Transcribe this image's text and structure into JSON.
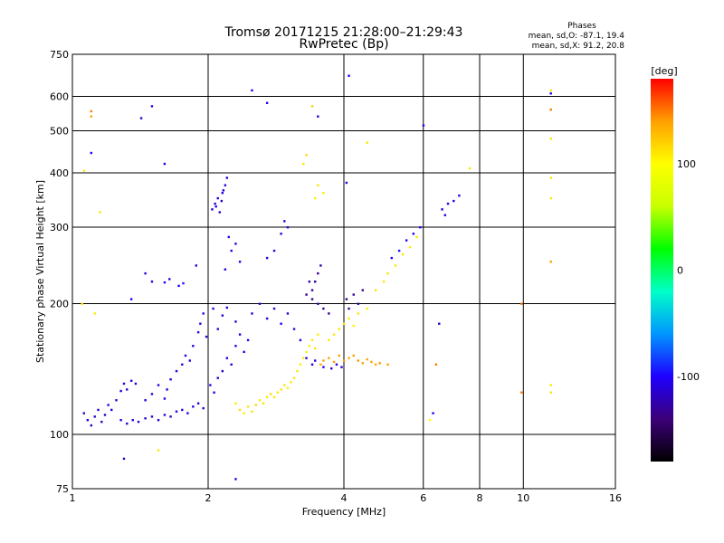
{
  "chart_data": {
    "type": "scatter",
    "title": "Tromsø 20171215 21:28:00–21:29:43",
    "subtitle": "RwPretec (Bp)",
    "xlabel": "Frequency [MHz]",
    "ylabel": "Stationary phase Virtual Height [km]",
    "x_scale": "log",
    "y_scale": "log",
    "xlim": [
      1,
      16
    ],
    "ylim": [
      75,
      750
    ],
    "x_ticks": [
      1,
      2,
      4,
      6,
      8,
      10,
      16
    ],
    "x_tick_labels": [
      "1",
      "2",
      "4",
      "6",
      "8",
      "10",
      "16"
    ],
    "y_ticks": [
      75,
      100,
      200,
      300,
      400,
      500,
      600,
      750
    ],
    "y_tick_labels": [
      "75",
      "100",
      "200",
      "300",
      "400",
      "500",
      "600",
      "750"
    ],
    "grid": true,
    "legend": {
      "heading": "Phases",
      "lines": [
        "mean, sd,O: -87.1, 19.4",
        "mean, sd,X:  91.2, 20.8"
      ],
      "position": "top-right"
    },
    "colorbar": {
      "label": "[deg]",
      "range": [
        -180,
        180
      ],
      "ticks": [
        100,
        0,
        -100
      ],
      "tick_labels": [
        "100",
        "0",
        "-100"
      ],
      "colors": [
        "#000000",
        "#3c0078",
        "#1e00ff",
        "#0096ff",
        "#00ffc8",
        "#00ff00",
        "#c8ff00",
        "#ffff00",
        "#ffa000",
        "#ff0000"
      ]
    },
    "series": [
      {
        "values": [
          [
            1.06,
            112,
            -115
          ],
          [
            1.08,
            108,
            -110
          ],
          [
            1.1,
            105,
            -118
          ],
          [
            1.12,
            110,
            -112
          ],
          [
            1.14,
            114,
            -108
          ],
          [
            1.16,
            107,
            -115
          ],
          [
            1.18,
            111,
            -110
          ],
          [
            1.2,
            117,
            -105
          ],
          [
            1.22,
            114,
            -112
          ],
          [
            1.25,
            120,
            -108
          ],
          [
            1.28,
            126,
            -110
          ],
          [
            1.3,
            131,
            -105
          ],
          [
            1.32,
            127,
            -112
          ],
          [
            1.35,
            133,
            -108
          ],
          [
            1.38,
            131,
            -110
          ],
          [
            1.28,
            108,
            -112
          ],
          [
            1.32,
            106,
            -115
          ],
          [
            1.36,
            108,
            -110
          ],
          [
            1.4,
            107,
            -112
          ],
          [
            1.45,
            109,
            -115
          ],
          [
            1.5,
            110,
            -110
          ],
          [
            1.55,
            108,
            -112
          ],
          [
            1.6,
            111,
            -108
          ],
          [
            1.65,
            110,
            -115
          ],
          [
            1.7,
            113,
            -110
          ],
          [
            1.75,
            114,
            -112
          ],
          [
            1.8,
            112,
            -110
          ],
          [
            1.85,
            116,
            -108
          ],
          [
            1.9,
            118,
            -112
          ],
          [
            1.95,
            115,
            -110
          ],
          [
            1.45,
            120,
            -110
          ],
          [
            1.5,
            124,
            -112
          ],
          [
            1.55,
            130,
            -110
          ],
          [
            1.6,
            121,
            -108
          ],
          [
            1.62,
            127,
            -112
          ],
          [
            1.65,
            134,
            -110
          ],
          [
            1.7,
            140,
            -105
          ],
          [
            1.75,
            145,
            -108
          ],
          [
            1.78,
            152,
            -110
          ],
          [
            1.82,
            148,
            -112
          ],
          [
            1.85,
            160,
            -108
          ],
          [
            1.9,
            172,
            -110
          ],
          [
            1.92,
            180,
            -112
          ],
          [
            1.95,
            190,
            -108
          ],
          [
            1.98,
            168,
            -110
          ],
          [
            1.72,
            220,
            -100
          ],
          [
            1.76,
            223,
            -95
          ],
          [
            1.6,
            224,
            -100
          ],
          [
            1.64,
            228,
            -110
          ],
          [
            1.88,
            245,
            -115
          ],
          [
            2.02,
            130,
            -110
          ],
          [
            2.06,
            125,
            -108
          ],
          [
            2.1,
            135,
            -112
          ],
          [
            2.15,
            140,
            -110
          ],
          [
            2.2,
            150,
            -108
          ],
          [
            2.25,
            145,
            -112
          ],
          [
            2.3,
            160,
            -105
          ],
          [
            2.35,
            170,
            -100
          ],
          [
            2.4,
            155,
            -108
          ],
          [
            2.45,
            165,
            -110
          ],
          [
            2.1,
            175,
            -112
          ],
          [
            2.15,
            188,
            -108
          ],
          [
            2.2,
            196,
            -110
          ],
          [
            2.3,
            182,
            -115
          ],
          [
            2.05,
            195,
            -110
          ],
          [
            2.04,
            330,
            -110
          ],
          [
            2.07,
            340,
            -112
          ],
          [
            2.1,
            350,
            -108
          ],
          [
            2.12,
            325,
            -110
          ],
          [
            2.15,
            360,
            -105
          ],
          [
            2.18,
            375,
            -110
          ],
          [
            2.2,
            390,
            -112
          ],
          [
            2.08,
            335,
            -100
          ],
          [
            2.14,
            345,
            -120
          ],
          [
            2.16,
            365,
            -108
          ],
          [
            2.22,
            285,
            -110
          ],
          [
            2.3,
            275,
            -112
          ],
          [
            2.25,
            265,
            -105
          ],
          [
            2.35,
            250,
            -110
          ],
          [
            2.18,
            240,
            -108
          ],
          [
            2.3,
            118,
            110
          ],
          [
            2.35,
            114,
            115
          ],
          [
            2.4,
            112,
            108
          ],
          [
            2.45,
            116,
            112
          ],
          [
            2.5,
            113,
            110
          ],
          [
            2.55,
            117,
            115
          ],
          [
            2.6,
            120,
            108
          ],
          [
            2.65,
            118,
            112
          ],
          [
            2.7,
            122,
            110
          ],
          [
            2.75,
            124,
            115
          ],
          [
            2.8,
            122,
            110
          ],
          [
            2.85,
            125,
            108
          ],
          [
            2.9,
            127,
            112
          ],
          [
            2.95,
            130,
            110
          ],
          [
            3.0,
            128,
            105
          ],
          [
            3.05,
            132,
            108
          ],
          [
            3.1,
            135,
            110
          ],
          [
            3.15,
            140,
            112
          ],
          [
            3.2,
            145,
            108
          ],
          [
            3.25,
            150,
            110
          ],
          [
            3.3,
            155,
            105
          ],
          [
            3.35,
            160,
            108
          ],
          [
            3.4,
            165,
            110
          ],
          [
            3.45,
            158,
            112
          ],
          [
            3.5,
            170,
            108
          ],
          [
            3.55,
            145,
            135
          ],
          [
            3.6,
            148,
            140
          ],
          [
            3.7,
            150,
            138
          ],
          [
            3.8,
            147,
            142
          ],
          [
            3.9,
            152,
            140
          ],
          [
            4.0,
            148,
            138
          ],
          [
            4.1,
            150,
            135
          ],
          [
            4.2,
            152,
            140
          ],
          [
            4.3,
            148,
            142
          ],
          [
            4.4,
            146,
            140
          ],
          [
            4.5,
            149,
            138
          ],
          [
            4.6,
            147,
            140
          ],
          [
            4.7,
            145,
            135
          ],
          [
            4.8,
            146,
            142
          ],
          [
            5.0,
            145,
            140
          ],
          [
            3.7,
            165,
            108
          ],
          [
            3.8,
            170,
            110
          ],
          [
            3.9,
            175,
            112
          ],
          [
            4.0,
            180,
            108
          ],
          [
            4.1,
            185,
            110
          ],
          [
            4.2,
            178,
            105
          ],
          [
            4.3,
            190,
            110
          ],
          [
            4.5,
            195,
            108
          ],
          [
            4.7,
            215,
            112
          ],
          [
            4.9,
            225,
            110
          ],
          [
            5.0,
            235,
            115
          ],
          [
            5.2,
            245,
            110
          ],
          [
            5.4,
            260,
            112
          ],
          [
            5.6,
            270,
            108
          ],
          [
            5.8,
            285,
            110
          ],
          [
            5.1,
            255,
            -100
          ],
          [
            5.3,
            265,
            -95
          ],
          [
            5.5,
            280,
            -100
          ],
          [
            5.7,
            290,
            -105
          ],
          [
            5.9,
            300,
            -100
          ],
          [
            2.5,
            190,
            -110
          ],
          [
            2.6,
            200,
            -108
          ],
          [
            2.7,
            185,
            -112
          ],
          [
            2.8,
            195,
            -110
          ],
          [
            2.9,
            180,
            -105
          ],
          [
            3.0,
            190,
            -110
          ],
          [
            3.1,
            175,
            -112
          ],
          [
            3.2,
            165,
            -108
          ],
          [
            3.3,
            150,
            -110
          ],
          [
            3.4,
            145,
            -112
          ],
          [
            3.45,
            148,
            -110
          ],
          [
            3.6,
            143,
            -108
          ],
          [
            3.75,
            142,
            -112
          ],
          [
            3.85,
            145,
            -110
          ],
          [
            3.95,
            143,
            -108
          ],
          [
            3.4,
            215,
            -130
          ],
          [
            3.45,
            225,
            -135
          ],
          [
            3.5,
            235,
            -130
          ],
          [
            3.55,
            245,
            -128
          ],
          [
            3.3,
            210,
            -130
          ],
          [
            3.35,
            225,
            -128
          ],
          [
            3.4,
            205,
            -132
          ],
          [
            3.5,
            200,
            -130
          ],
          [
            3.6,
            195,
            -128
          ],
          [
            3.7,
            190,
            -130
          ],
          [
            4.05,
            205,
            -130
          ],
          [
            4.1,
            195,
            -128
          ],
          [
            4.2,
            210,
            -130
          ],
          [
            4.3,
            200,
            -132
          ],
          [
            4.4,
            215,
            -130
          ],
          [
            2.9,
            290,
            -110
          ],
          [
            2.95,
            310,
            -112
          ],
          [
            3.0,
            300,
            -108
          ],
          [
            2.8,
            265,
            -110
          ],
          [
            2.7,
            255,
            -112
          ],
          [
            6.6,
            330,
            -110
          ],
          [
            6.8,
            340,
            -108
          ],
          [
            7.0,
            345,
            -112
          ],
          [
            7.2,
            355,
            -110
          ],
          [
            6.7,
            320,
            -105
          ],
          [
            3.3,
            440,
            115
          ],
          [
            3.25,
            420,
            110
          ],
          [
            3.5,
            375,
            112
          ],
          [
            3.6,
            360,
            110
          ],
          [
            3.45,
            350,
            108
          ],
          [
            1.1,
            555,
            150
          ],
          [
            1.1,
            540,
            140
          ],
          [
            1.42,
            535,
            -120
          ],
          [
            1.5,
            570,
            -110
          ],
          [
            1.1,
            445,
            -100
          ],
          [
            1.6,
            420,
            -110
          ],
          [
            2.5,
            620,
            -100
          ],
          [
            2.7,
            580,
            -105
          ],
          [
            3.4,
            570,
            120
          ],
          [
            3.5,
            540,
            -110
          ],
          [
            4.5,
            470,
            110
          ],
          [
            4.05,
            380,
            -110
          ],
          [
            4.1,
            670,
            -100
          ],
          [
            6.0,
            515,
            -100
          ],
          [
            7.6,
            410,
            110
          ],
          [
            11.5,
            620,
            110
          ],
          [
            11.5,
            610,
            -100
          ],
          [
            11.5,
            560,
            150
          ],
          [
            11.5,
            480,
            110
          ],
          [
            11.5,
            390,
            110
          ],
          [
            11.5,
            350,
            110
          ],
          [
            11.5,
            250,
            140
          ],
          [
            11.5,
            130,
            110
          ],
          [
            11.5,
            125,
            112
          ],
          [
            9.9,
            200,
            150
          ],
          [
            9.9,
            125,
            150
          ],
          [
            6.5,
            180,
            -120
          ],
          [
            6.3,
            112,
            -100
          ],
          [
            6.2,
            108,
            100
          ],
          [
            6.4,
            145,
            150
          ],
          [
            1.3,
            88,
            -120
          ],
          [
            1.55,
            92,
            110
          ],
          [
            2.3,
            79,
            -110
          ],
          [
            1.05,
            200,
            110
          ],
          [
            1.12,
            190,
            110
          ],
          [
            1.35,
            205,
            -100
          ],
          [
            1.45,
            235,
            -110
          ],
          [
            1.5,
            225,
            -112
          ],
          [
            1.15,
            325,
            110
          ],
          [
            1.06,
            405,
            110
          ]
        ]
      }
    ]
  }
}
